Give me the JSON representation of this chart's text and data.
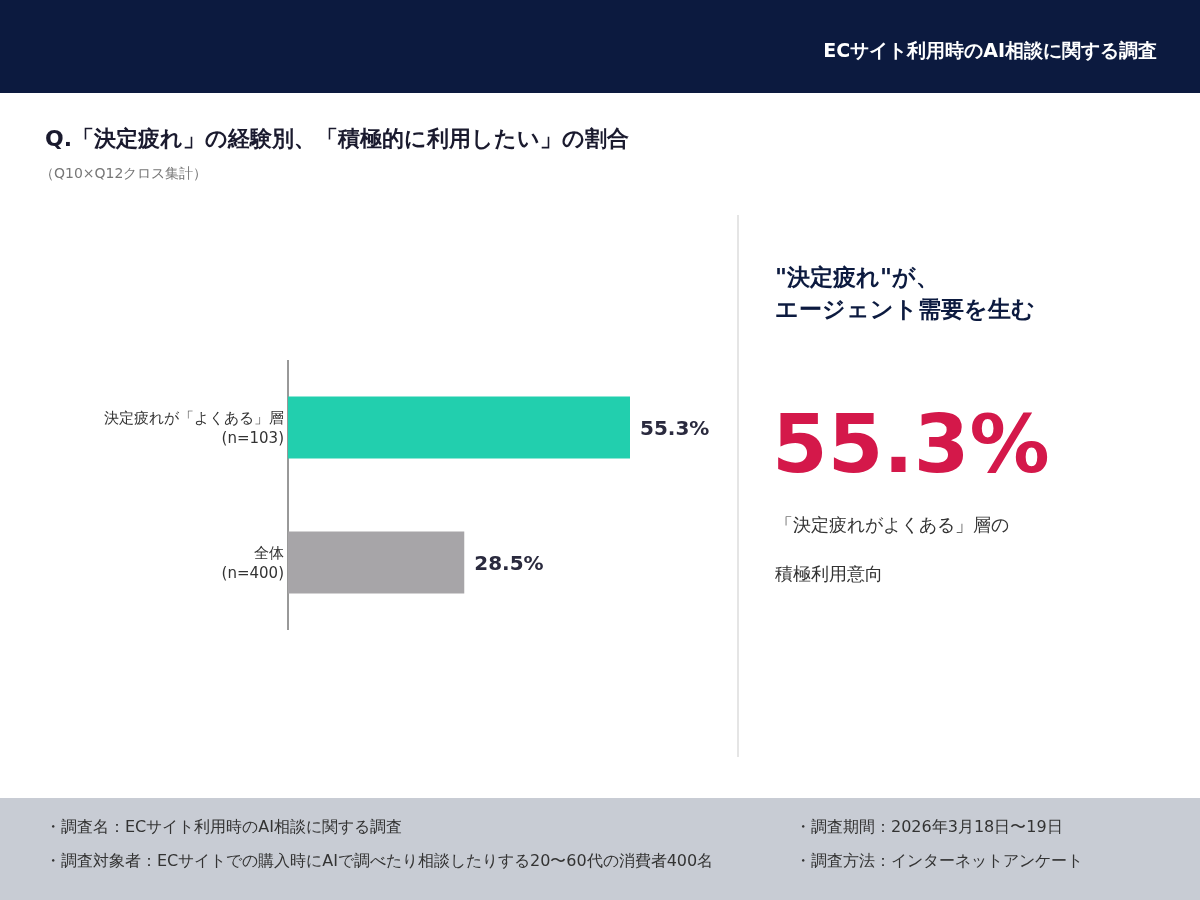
{
  "chart_data": {
    "type": "bar",
    "orientation": "horizontal",
    "title": "Q.「決定疲れ」の経験別、「積極的に利用したい」の割合",
    "subtitle": "（Q10×Q12クロス集計）",
    "categories": [
      "決定疲れが「よくある」層 (n=103)",
      "全体 (n=400)"
    ],
    "values": [
      55.3,
      28.5
    ],
    "colors": [
      "#22cfae",
      "#a7a5a8"
    ],
    "value_labels": [
      "55.3%",
      "28.5%"
    ],
    "annotations": [
      "ECサイト利用時のAI相談に関する調査",
      "\"決定疲れ\"が、",
      "エージェント需要を生む",
      "55.3%",
      "「決定疲れがよくある」層の",
      "積極利用意向",
      "・調査名：ECサイト利用時のAI相談に関する調査",
      "・調査対象者：ECサイトでの購入時にAIで調べたり相談したりする20〜60代の消費者400名",
      "・調査期間：2026年3月18日〜19日",
      "・調査方法：インターネットアンケート"
    ]
  }
}
